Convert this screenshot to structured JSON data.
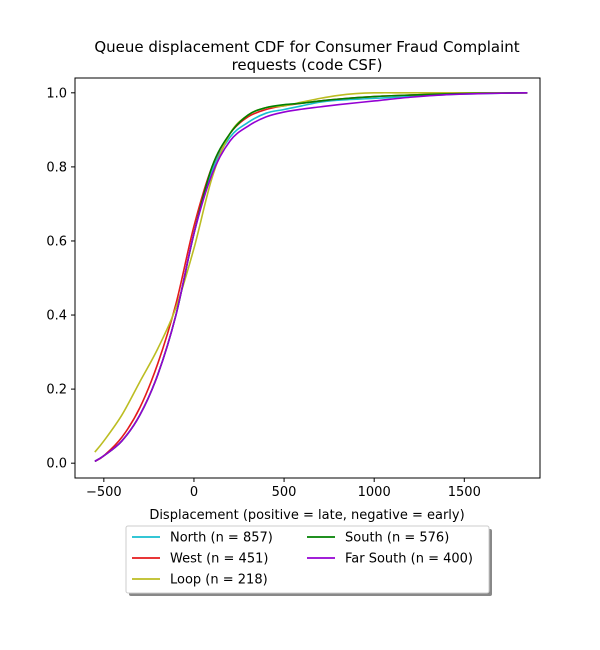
{
  "chart_data": {
    "type": "line",
    "title_line1": "Queue displacement CDF for Consumer Fraud Complaint",
    "title_line2": "requests (code CSF)",
    "xlabel": "Displacement (positive = late, negative = early)",
    "ylabel": "",
    "xlim": [
      -660,
      1920
    ],
    "ylim": [
      -0.04,
      1.04
    ],
    "xticks": [
      -500,
      0,
      500,
      1000,
      1500
    ],
    "xtick_labels": [
      "−500",
      "0",
      "500",
      "1000",
      "1500"
    ],
    "yticks": [
      0.0,
      0.2,
      0.4,
      0.6,
      0.8,
      1.0
    ],
    "ytick_labels": [
      "0.0",
      "0.2",
      "0.4",
      "0.6",
      "0.8",
      "1.0"
    ],
    "grid": false,
    "legend_position": "below",
    "series": [
      {
        "name": "North (n = 857)",
        "color": "#17becf",
        "x": [
          -550,
          -500,
          -400,
          -300,
          -200,
          -100,
          0,
          100,
          200,
          300,
          400,
          500,
          600,
          700,
          800,
          1000,
          1200,
          1400,
          1600,
          1850
        ],
        "y": [
          0.005,
          0.02,
          0.06,
          0.13,
          0.24,
          0.4,
          0.62,
          0.79,
          0.88,
          0.92,
          0.945,
          0.955,
          0.965,
          0.975,
          0.98,
          0.985,
          0.99,
          0.995,
          0.998,
          1.0
        ]
      },
      {
        "name": "West (n = 451)",
        "color": "#e41a1c",
        "x": [
          -550,
          -500,
          -400,
          -300,
          -200,
          -100,
          0,
          100,
          200,
          300,
          400,
          500,
          600,
          700,
          800,
          1000,
          1200,
          1400,
          1600,
          1850
        ],
        "y": [
          0.005,
          0.02,
          0.07,
          0.15,
          0.27,
          0.43,
          0.64,
          0.8,
          0.89,
          0.935,
          0.955,
          0.965,
          0.972,
          0.978,
          0.983,
          0.99,
          0.994,
          0.997,
          0.999,
          1.0
        ]
      },
      {
        "name": "Loop (n = 218)",
        "color": "#bcbd22",
        "x": [
          -550,
          -500,
          -400,
          -300,
          -200,
          -100,
          0,
          100,
          200,
          300,
          400,
          500,
          600,
          700,
          800,
          900,
          1000,
          1200,
          1500,
          1850
        ],
        "y": [
          0.03,
          0.06,
          0.13,
          0.22,
          0.31,
          0.42,
          0.58,
          0.77,
          0.89,
          0.94,
          0.96,
          0.965,
          0.975,
          0.985,
          0.993,
          0.998,
          1.0,
          1.0,
          1.0,
          1.0
        ]
      },
      {
        "name": "South (n = 576)",
        "color": "#008000",
        "x": [
          -550,
          -500,
          -400,
          -300,
          -200,
          -100,
          0,
          100,
          200,
          300,
          400,
          500,
          600,
          700,
          800,
          1000,
          1200,
          1400,
          1600,
          1850
        ],
        "y": [
          0.005,
          0.02,
          0.06,
          0.13,
          0.24,
          0.4,
          0.62,
          0.8,
          0.89,
          0.94,
          0.96,
          0.968,
          0.972,
          0.978,
          0.983,
          0.99,
          0.994,
          0.997,
          0.999,
          1.0
        ]
      },
      {
        "name": "Far South (n = 400)",
        "color": "#9400d3",
        "x": [
          -550,
          -500,
          -400,
          -300,
          -200,
          -100,
          0,
          100,
          200,
          300,
          400,
          500,
          600,
          700,
          800,
          1000,
          1200,
          1400,
          1600,
          1850
        ],
        "y": [
          0.005,
          0.02,
          0.06,
          0.13,
          0.24,
          0.4,
          0.62,
          0.78,
          0.87,
          0.91,
          0.935,
          0.948,
          0.956,
          0.962,
          0.968,
          0.978,
          0.988,
          0.995,
          0.998,
          1.0
        ]
      }
    ],
    "legend_order": [
      0,
      3,
      1,
      4,
      2
    ]
  }
}
